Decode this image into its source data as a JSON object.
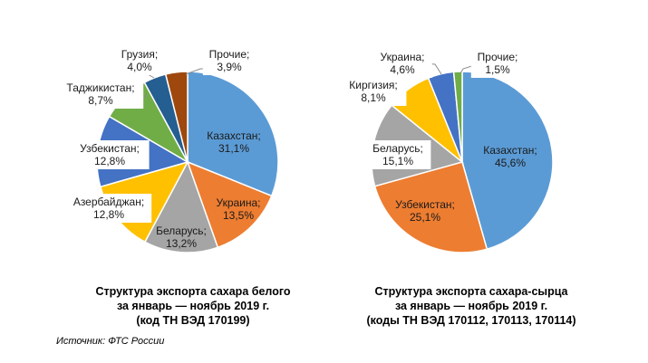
{
  "chart_data": [
    {
      "type": "pie",
      "title": [
        "Структура экспорта сахара белого",
        "за январь — ноябрь 2019 г.",
        "(код ТН ВЭД 170199)"
      ],
      "slices": [
        {
          "label": "Казахстан;",
          "value": 31.1,
          "text": "31,1%",
          "color": "#5B9BD5"
        },
        {
          "label": "Украина;",
          "value": 13.5,
          "text": "13,5%",
          "color": "#ED7D31"
        },
        {
          "label": "Беларусь;",
          "value": 13.2,
          "text": "13,2%",
          "color": "#A5A5A5"
        },
        {
          "label": "Азербайджан;",
          "value": 12.8,
          "text": "12,8%",
          "color": "#FFC000"
        },
        {
          "label": "Узбекистан;",
          "value": 12.8,
          "text": "12,8%",
          "color": "#4472C4"
        },
        {
          "label": "Таджикистан;",
          "value": 8.7,
          "text": "8,7%",
          "color": "#70AD47"
        },
        {
          "label": "Грузия;",
          "value": 4.0,
          "text": "4,0%",
          "color": "#255E91"
        },
        {
          "label": "Прочие;",
          "value": 3.9,
          "text": "3,9%",
          "color": "#9E480E"
        }
      ]
    },
    {
      "type": "pie",
      "title": [
        "Структура экспорта сахара-сырца",
        "за январь — ноябрь 2019 г.",
        "(коды ТН ВЭД 170112, 170113, 170114)"
      ],
      "slices": [
        {
          "label": "Казахстан;",
          "value": 45.6,
          "text": "45,6%",
          "color": "#5B9BD5"
        },
        {
          "label": "Узбекистан;",
          "value": 25.1,
          "text": "25,1%",
          "color": "#ED7D31"
        },
        {
          "label": "Беларусь;",
          "value": 15.1,
          "text": "15,1%",
          "color": "#A5A5A5"
        },
        {
          "label": "Киргизия;",
          "value": 8.1,
          "text": "8,1%",
          "color": "#FFC000"
        },
        {
          "label": "Украина;",
          "value": 4.6,
          "text": "4,6%",
          "color": "#4472C4"
        },
        {
          "label": "Прочие;",
          "value": 1.5,
          "text": "1,5%",
          "color": "#70AD47"
        }
      ]
    }
  ],
  "source": "Источник: ФТС России"
}
